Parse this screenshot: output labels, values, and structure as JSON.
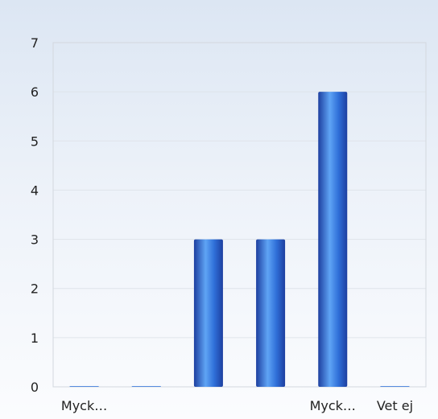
{
  "chart_data": {
    "type": "bar",
    "categories": [
      "Myck…",
      "",
      "",
      "",
      "Myck…",
      "Vet ej"
    ],
    "values": [
      0,
      0,
      3,
      3,
      6,
      0
    ],
    "ylim": [
      0,
      7
    ],
    "yticks": [
      "0",
      "1",
      "2",
      "3",
      "4",
      "5",
      "6",
      "7"
    ],
    "title": "",
    "xlabel": "",
    "ylabel": "",
    "grid": true,
    "legend": "none",
    "colors": {
      "bar_dark": "#1d3fa0",
      "bar_mid": "#2f6fd8",
      "bar_light": "#5fa4f5",
      "background_top": "#dce6f3",
      "background_bottom": "#fbfcfe"
    }
  }
}
